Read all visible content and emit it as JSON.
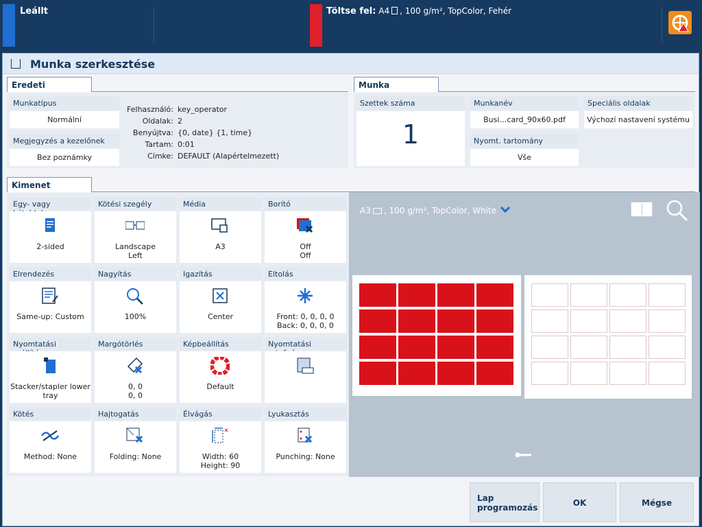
{
  "topbar": {
    "status": "Leállt",
    "load_label": "Töltse fel:",
    "load_size": "A4",
    "load_details": ", 100 g/m², TopColor, Fehér",
    "warning_icon": "printer-warning-icon",
    "colors": {
      "status": "#1f6fd1",
      "alert": "#e0202b",
      "warning": "#f08c1e"
    }
  },
  "dialog": {
    "title": "Munka szerkesztése"
  },
  "eredeti": {
    "tab": "Eredeti",
    "munkatipus_label": "Munkatípus",
    "munkatipus_value": "Normální",
    "megjegyzes_label": "Megjegyzés a kezelőnek",
    "megjegyzes_value": "Bez poznámky",
    "info": [
      {
        "key": "Felhasználó:",
        "value": "key_operator"
      },
      {
        "key": "Oldalak:",
        "value": "2"
      },
      {
        "key": "Benyújtva:",
        "value": "{0, date} {1, time}"
      },
      {
        "key": "Tartam:",
        "value": "0:01"
      },
      {
        "key": "Címke:",
        "value": "DEFAULT (Alapértelmezett)"
      }
    ]
  },
  "munka": {
    "tab": "Munka",
    "szettek_label": "Szettek száma",
    "szettek_value": "1",
    "munkanev_label": "Munkanév",
    "munkanev_value": "Busi…card_90x60.pdf",
    "specialis_label": "Speciális oldalak",
    "specialis_value": "Výchozí nastavení systému",
    "tartomany_label": "Nyomt. tartomány",
    "tartomany_value": "Vše"
  },
  "kimenet": {
    "tab": "Kimenet",
    "tiles": [
      {
        "label": "Egy- vagy kétoldalas",
        "value": "2-sided",
        "icon": "duplex-icon"
      },
      {
        "label": "Kötési szegély",
        "value": "Landscape\nLeft",
        "icon": "binding-edge-icon"
      },
      {
        "label": "Média",
        "value": "A3",
        "icon": "media-icon"
      },
      {
        "label": "Borító",
        "value": "Off\nOff",
        "icon": "cover-icon"
      },
      {
        "label": "Elrendezés",
        "value": "Same-up: Custom",
        "icon": "layout-icon"
      },
      {
        "label": "Nagyítás",
        "value": "100%",
        "icon": "zoom-icon"
      },
      {
        "label": "Igazítás",
        "value": "Center",
        "icon": "align-center-icon"
      },
      {
        "label": "Eltolás",
        "value": "Front: 0, 0, 0, 0\nBack: 0, 0, 0, 0",
        "icon": "shift-icon"
      },
      {
        "label": "Nyomtatási szállítás",
        "value": "Stacker/stapler lower\ntray",
        "icon": "stacker-icon"
      },
      {
        "label": "Margótörlés",
        "value": "0, 0\n0, 0",
        "icon": "edge-erase-icon"
      },
      {
        "label": "Képbeállítás",
        "value": "Default",
        "icon": "color-wheel-icon"
      },
      {
        "label": "Nyomtatási minőség",
        "value": "",
        "icon": "print-quality-icon"
      },
      {
        "label": "Kötés",
        "value": "Method: None",
        "icon": "binding-icon"
      },
      {
        "label": "Hajtogatás",
        "value": "Folding: None",
        "icon": "folding-icon"
      },
      {
        "label": "Élvágás",
        "value": "Width: 60\nHeight: 90",
        "icon": "trimming-icon"
      },
      {
        "label": "Lyukasztás",
        "value": "Punching: None",
        "icon": "punching-icon"
      }
    ]
  },
  "preview": {
    "media": "A3",
    "media_details": ", 100 g/m², TopColor, White"
  },
  "buttons": {
    "lap": "Lap\nprogramozás",
    "ok": "OK",
    "cancel": "Mégse"
  }
}
